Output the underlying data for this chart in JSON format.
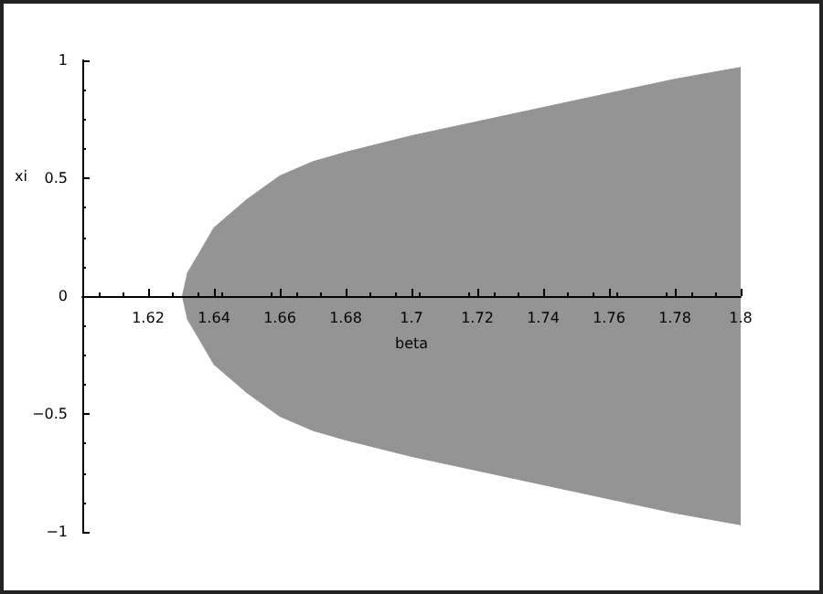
{
  "chart_data": {
    "type": "area",
    "xlabel": "beta",
    "ylabel": "xi",
    "x": [
      1.6304,
      1.632,
      1.635,
      1.64,
      1.65,
      1.66,
      1.67,
      1.68,
      1.7,
      1.72,
      1.74,
      1.76,
      1.78,
      1.8
    ],
    "series": [
      {
        "color": "#949494",
        "values": [
          0,
          0.1,
          0.17,
          0.29,
          0.41,
          0.51,
          0.57,
          0.61,
          0.68,
          0.74,
          0.8,
          0.86,
          0.92,
          0.97
        ]
      },
      {
        "color": "#949494",
        "values": [
          0,
          -0.1,
          -0.17,
          -0.29,
          -0.41,
          -0.51,
          -0.57,
          -0.61,
          -0.68,
          -0.74,
          -0.8,
          -0.86,
          -0.92,
          -0.97
        ]
      }
    ],
    "xlim": [
      1.6,
      1.8
    ],
    "xticks": [
      1.62,
      1.64,
      1.66,
      1.68,
      1.7,
      1.72,
      1.74,
      1.76,
      1.78,
      1.8
    ],
    "ylim": [
      -1,
      1
    ],
    "yticks": [
      -1,
      -0.5,
      0,
      0.5,
      1
    ]
  }
}
